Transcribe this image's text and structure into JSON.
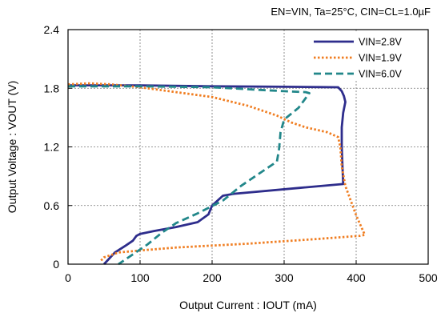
{
  "chart_data": {
    "type": "line",
    "title": "EN=VIN, Ta=25°C, CIN=CL=1.0µF",
    "xlabel": "Output Current : IOUT (mA)",
    "ylabel": "Output Voltage : VOUT (V)",
    "xlim": [
      0,
      500
    ],
    "ylim": [
      0,
      2.4
    ],
    "xticks": [
      0,
      100,
      200,
      300,
      400,
      500
    ],
    "yticks": [
      0,
      0.6,
      1.2,
      1.8,
      2.4
    ],
    "x_tick_labels": [
      "0",
      "100",
      "200",
      "300",
      "400",
      "500"
    ],
    "y_tick_labels": [
      "0",
      "0.6",
      "1.2",
      "1.8",
      "2.4"
    ],
    "grid": true,
    "legend_position": "top-right",
    "series": [
      {
        "name": "VIN=2.8V",
        "color": "#2e2d8c",
        "dash": "solid",
        "x": [
          0,
          100,
          200,
          300,
          350,
          375,
          380,
          383,
          385,
          382,
          380,
          380,
          381,
          382,
          320,
          230,
          215,
          200,
          195,
          180,
          150,
          120,
          100,
          95,
          90,
          80,
          65,
          50
        ],
        "y": [
          1.83,
          1.83,
          1.82,
          1.815,
          1.812,
          1.81,
          1.77,
          1.72,
          1.66,
          1.55,
          1.4,
          1.2,
          1.0,
          0.82,
          0.78,
          0.72,
          0.7,
          0.6,
          0.51,
          0.43,
          0.38,
          0.34,
          0.31,
          0.29,
          0.24,
          0.19,
          0.12,
          0.0
        ]
      },
      {
        "name": "VIN=1.9V",
        "color": "#f07e22",
        "dash": "dotted",
        "x": [
          0,
          30,
          60,
          100,
          150,
          200,
          250,
          290,
          310,
          330,
          360,
          375,
          378,
          380,
          385,
          400,
          412,
          405,
          350,
          250,
          150,
          100,
          70,
          50,
          45
        ],
        "y": [
          1.84,
          1.85,
          1.84,
          1.81,
          1.76,
          1.71,
          1.62,
          1.52,
          1.45,
          1.4,
          1.35,
          1.3,
          1.2,
          1.0,
          0.8,
          0.5,
          0.3,
          0.29,
          0.26,
          0.21,
          0.17,
          0.14,
          0.12,
          0.07,
          0.03
        ]
      },
      {
        "name": "VIN=6.0V",
        "color": "#22878a",
        "dash": "dashed",
        "x": [
          0,
          100,
          200,
          250,
          300,
          330,
          335,
          320,
          300,
          295,
          293,
          290,
          270,
          240,
          215,
          180,
          150,
          130,
          110,
          90,
          70
        ],
        "y": [
          1.82,
          1.82,
          1.81,
          1.79,
          1.77,
          1.76,
          1.75,
          1.6,
          1.48,
          1.35,
          1.18,
          1.05,
          0.95,
          0.8,
          0.65,
          0.52,
          0.42,
          0.32,
          0.2,
          0.1,
          0.0
        ]
      }
    ]
  }
}
